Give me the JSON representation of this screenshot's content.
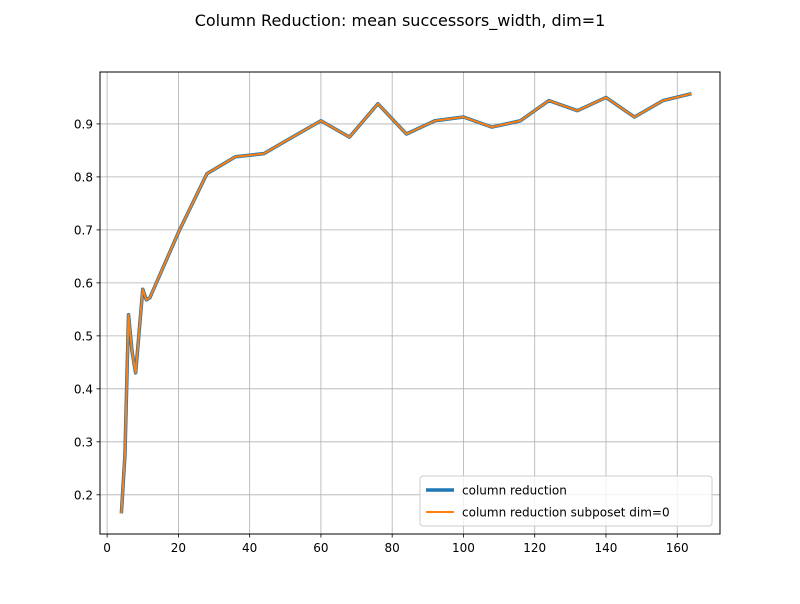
{
  "chart_data": {
    "type": "line",
    "title": "Column Reduction: mean successors_width, dim=1",
    "xlabel": "",
    "ylabel": "",
    "xlim": [
      -2.0,
      172.0
    ],
    "ylim": [
      0.126,
      0.998
    ],
    "xticks": [
      0,
      20,
      40,
      60,
      80,
      100,
      120,
      140,
      160
    ],
    "yticks": [
      0.2,
      0.3,
      0.4,
      0.5,
      0.6,
      0.7,
      0.8,
      0.9
    ],
    "xtick_labels": [
      "0",
      "20",
      "40",
      "60",
      "80",
      "100",
      "120",
      "140",
      "160"
    ],
    "ytick_labels": [
      "0.2",
      "0.3",
      "0.4",
      "0.5",
      "0.6",
      "0.7",
      "0.8",
      "0.9"
    ],
    "grid": true,
    "legend_position": "lower right",
    "x": [
      4,
      5,
      6,
      7,
      8,
      10,
      11,
      12,
      20,
      28,
      36,
      44,
      52,
      60,
      68,
      76,
      84,
      92,
      100,
      108,
      116,
      124,
      132,
      140,
      148,
      156,
      164
    ],
    "series": [
      {
        "name": "column reduction",
        "color": "#1f77b4",
        "values": [
          0.165,
          0.275,
          0.54,
          0.47,
          0.43,
          0.588,
          0.568,
          0.572,
          0.695,
          0.806,
          0.838,
          0.844,
          0.875,
          0.906,
          0.875,
          0.938,
          0.881,
          0.906,
          0.913,
          0.894,
          0.906,
          0.944,
          0.925,
          0.95,
          0.913,
          0.944,
          0.957
        ]
      },
      {
        "name": "column reduction subposet dim=0",
        "color": "#ff7f0e",
        "values": [
          0.165,
          0.275,
          0.54,
          0.47,
          0.43,
          0.588,
          0.568,
          0.572,
          0.695,
          0.806,
          0.838,
          0.844,
          0.875,
          0.906,
          0.875,
          0.938,
          0.881,
          0.906,
          0.913,
          0.894,
          0.906,
          0.944,
          0.925,
          0.95,
          0.913,
          0.944,
          0.957
        ]
      }
    ]
  }
}
